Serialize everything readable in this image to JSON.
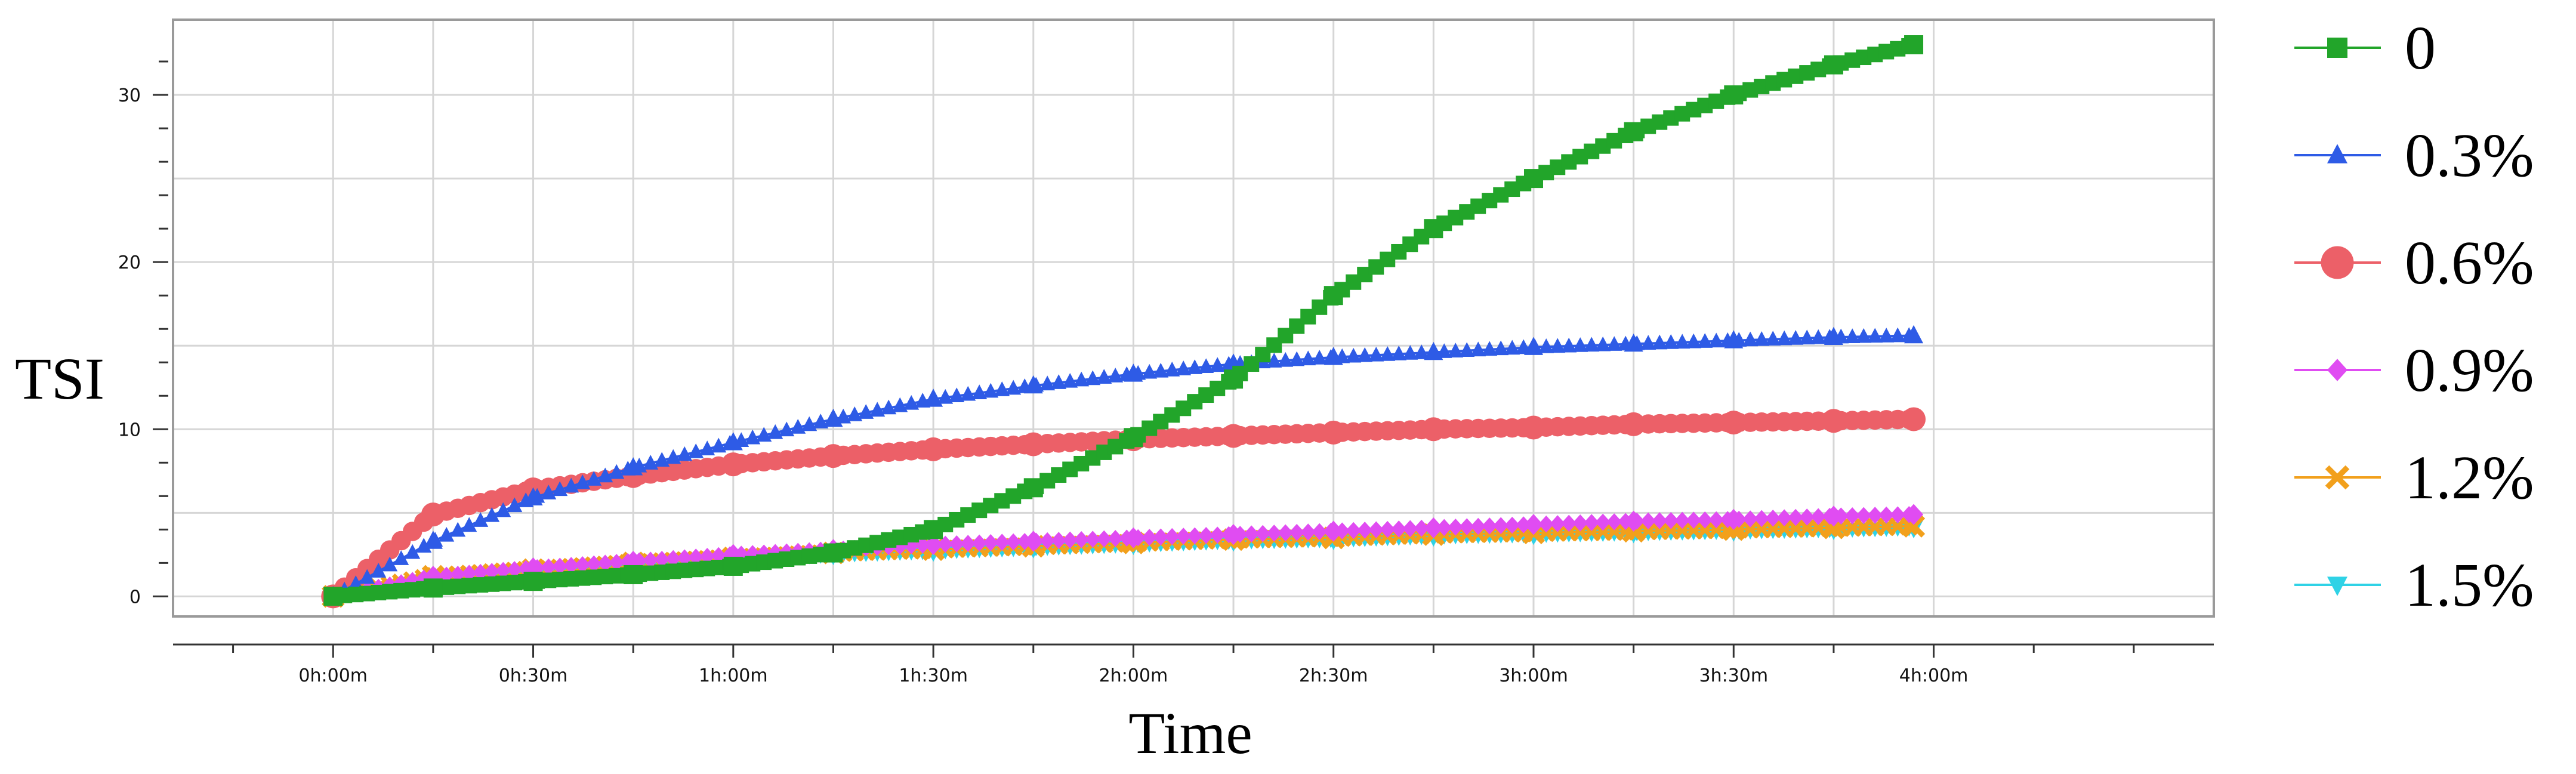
{
  "chart_data": {
    "type": "line",
    "xlabel": "Time",
    "ylabel": "TSI",
    "x_unit": "minutes",
    "xlim": [
      -24,
      282
    ],
    "ylim": [
      -1.2,
      34.5
    ],
    "x_ticks": [
      {
        "value": 0,
        "label": "0h:00m"
      },
      {
        "value": 30,
        "label": "0h:30m"
      },
      {
        "value": 60,
        "label": "1h:00m"
      },
      {
        "value": 90,
        "label": "1h:30m"
      },
      {
        "value": 120,
        "label": "2h:00m"
      },
      {
        "value": 150,
        "label": "2h:30m"
      },
      {
        "value": 180,
        "label": "3h:00m"
      },
      {
        "value": 210,
        "label": "3h:30m"
      },
      {
        "value": 240,
        "label": "4h:00m"
      }
    ],
    "y_ticks": [
      {
        "value": 0,
        "label": "0"
      },
      {
        "value": 10,
        "label": "10"
      },
      {
        "value": 20,
        "label": "20"
      },
      {
        "value": 30,
        "label": "30"
      }
    ],
    "grid": true,
    "legend_position": "right",
    "x": [
      0,
      15,
      30,
      45,
      60,
      75,
      90,
      105,
      120,
      135,
      150,
      165,
      180,
      195,
      210,
      225,
      237
    ],
    "series": [
      {
        "name": "0",
        "color": "#22a52a",
        "marker": "square",
        "values": [
          0,
          0.5,
          0.9,
          1.3,
          1.8,
          2.6,
          4.0,
          6.5,
          9.5,
          13.0,
          18.0,
          22.0,
          25.0,
          27.8,
          30.0,
          31.8,
          33.0
        ]
      },
      {
        "name": "0.3%",
        "color": "#2e5be6",
        "marker": "triangle-up",
        "values": [
          0,
          3.3,
          5.9,
          7.7,
          9.2,
          10.6,
          11.8,
          12.6,
          13.3,
          13.9,
          14.3,
          14.6,
          14.9,
          15.1,
          15.3,
          15.5,
          15.6
        ]
      },
      {
        "name": "0.6%",
        "color": "#ec6068",
        "marker": "circle",
        "values": [
          0,
          4.9,
          6.4,
          7.2,
          7.9,
          8.4,
          8.8,
          9.1,
          9.4,
          9.6,
          9.8,
          10.0,
          10.1,
          10.3,
          10.4,
          10.5,
          10.6
        ]
      },
      {
        "name": "0.9%",
        "color": "#e04cf2",
        "marker": "diamond",
        "values": [
          0,
          1.2,
          1.7,
          2.1,
          2.5,
          2.8,
          3.1,
          3.3,
          3.5,
          3.7,
          3.9,
          4.1,
          4.3,
          4.5,
          4.6,
          4.8,
          4.9
        ]
      },
      {
        "name": "1.2%",
        "color": "#f2a01c",
        "marker": "x",
        "values": [
          0,
          1.2,
          1.6,
          2.0,
          2.3,
          2.6,
          2.8,
          3.0,
          3.2,
          3.4,
          3.5,
          3.7,
          3.8,
          3.9,
          4.0,
          4.1,
          4.2
        ]
      },
      {
        "name": "1.5%",
        "color": "#2fd2e6",
        "marker": "triangle-down",
        "values": [
          0,
          1.1,
          1.5,
          1.9,
          2.2,
          2.5,
          2.7,
          2.9,
          3.1,
          3.3,
          3.4,
          3.6,
          3.7,
          3.8,
          3.9,
          4.0,
          4.1
        ]
      }
    ]
  }
}
